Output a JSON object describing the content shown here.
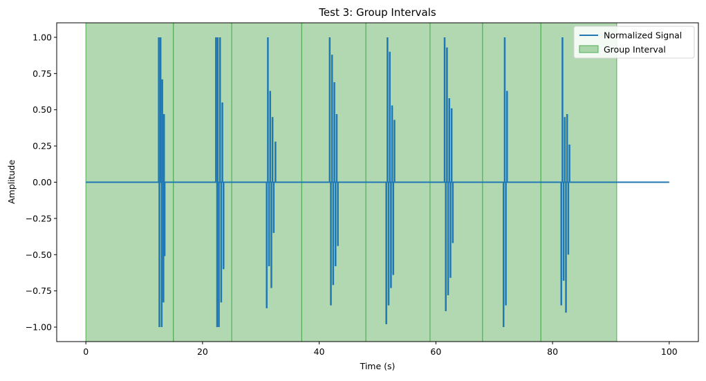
{
  "chart_data": {
    "type": "line",
    "title": "Test 3: Group Intervals",
    "xlabel": "Time (s)",
    "ylabel": "Amplitude",
    "xlim": [
      -5,
      105
    ],
    "ylim": [
      -1.1,
      1.1
    ],
    "xticks": [
      0,
      20,
      40,
      60,
      80,
      100
    ],
    "xtick_labels": [
      "0",
      "20",
      "40",
      "60",
      "80",
      "100"
    ],
    "yticks": [
      -1.0,
      -0.75,
      -0.5,
      -0.25,
      0.0,
      0.25,
      0.5,
      0.75,
      1.0
    ],
    "ytick_labels": [
      "−1.00",
      "−0.75",
      "−0.50",
      "−0.25",
      "0.00",
      "0.25",
      "0.50",
      "0.75",
      "1.00"
    ],
    "grid": false,
    "legend_position": "top-right",
    "legend": [
      {
        "label": "Normalized Signal",
        "kind": "line",
        "color": "#1f77b4"
      },
      {
        "label": "Group Interval",
        "kind": "patch",
        "color": "#63b163"
      }
    ],
    "baseline": {
      "x": [
        0,
        100
      ],
      "y": 0
    },
    "bursts": [
      {
        "t": [
          12.5,
          12.6,
          12.8,
          13.0,
          13.1,
          13.3,
          13.4,
          13.5
        ],
        "v": [
          1.0,
          -1.0,
          1.0,
          -1.0,
          0.71,
          -0.83,
          0.47,
          -0.51
        ]
      },
      {
        "t": [
          22.3,
          22.5,
          22.6,
          22.8,
          23.0,
          23.2,
          23.4,
          23.6
        ],
        "v": [
          1.0,
          -1.0,
          1.0,
          -1.0,
          1.0,
          -0.83,
          0.55,
          -0.6
        ]
      },
      {
        "t": [
          31.0,
          31.2,
          31.4,
          31.6,
          31.8,
          32.0,
          32.2,
          32.5
        ],
        "v": [
          -0.87,
          1.0,
          -0.58,
          0.63,
          -0.73,
          0.45,
          -0.35,
          0.28
        ]
      },
      {
        "t": [
          41.8,
          42.0,
          42.2,
          42.4,
          42.6,
          42.8,
          43.0,
          43.2
        ],
        "v": [
          1.0,
          -0.85,
          0.88,
          -0.71,
          0.69,
          -0.58,
          0.47,
          -0.44
        ]
      },
      {
        "t": [
          51.5,
          51.7,
          51.9,
          52.1,
          52.3,
          52.5,
          52.7,
          52.9
        ],
        "v": [
          -0.98,
          1.0,
          -0.85,
          0.9,
          -0.73,
          0.53,
          -0.64,
          0.43
        ]
      },
      {
        "t": [
          61.5,
          61.7,
          61.9,
          62.1,
          62.3,
          62.5,
          62.7,
          62.9
        ],
        "v": [
          1.0,
          -0.89,
          0.93,
          -0.78,
          0.58,
          -0.66,
          0.51,
          -0.42
        ]
      },
      {
        "t": [
          71.6,
          71.8,
          72.0,
          72.2
        ],
        "v": [
          -1.0,
          1.0,
          -0.85,
          0.63
        ]
      },
      {
        "t": [
          81.5,
          81.7,
          81.9,
          82.1,
          82.3,
          82.5,
          82.7,
          82.9
        ],
        "v": [
          -0.85,
          1.0,
          -0.68,
          0.45,
          -0.9,
          0.47,
          -0.5,
          0.26
        ]
      }
    ],
    "group_intervals": [
      {
        "start": 0,
        "end": 15
      },
      {
        "start": 15,
        "end": 25
      },
      {
        "start": 25,
        "end": 37
      },
      {
        "start": 37,
        "end": 48
      },
      {
        "start": 48,
        "end": 59
      },
      {
        "start": 59,
        "end": 68
      },
      {
        "start": 68,
        "end": 78
      },
      {
        "start": 78,
        "end": 91
      }
    ]
  },
  "colors": {
    "signal": "#1f77b4",
    "interval_fill": "#63b163",
    "interval_edge": "#4caf50",
    "axes": "#000000",
    "background": "#ffffff"
  }
}
